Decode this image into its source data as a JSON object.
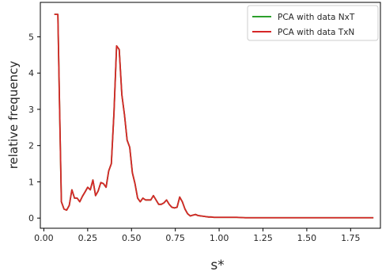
{
  "chart_data": {
    "type": "line",
    "title": "",
    "xlabel": "s*",
    "ylabel": "relative frequency",
    "xlim": [
      -0.02,
      1.92
    ],
    "ylim": [
      -0.28,
      5.95
    ],
    "xticks": [
      "0.00",
      "0.25",
      "0.50",
      "0.75",
      "1.00",
      "1.25",
      "1.50",
      "1.75"
    ],
    "yticks": [
      "0",
      "1",
      "2",
      "3",
      "4",
      "5"
    ],
    "grid": false,
    "legend_position": "top-right",
    "series": [
      {
        "name": "PCA with data NxT",
        "color": "#2ca02c",
        "x": [
          0.06,
          0.08,
          0.09,
          0.1,
          0.115,
          0.13,
          0.145,
          0.16,
          0.175,
          0.19,
          0.205,
          0.22,
          0.235,
          0.25,
          0.265,
          0.28,
          0.295,
          0.31,
          0.325,
          0.34,
          0.355,
          0.37,
          0.385,
          0.4,
          0.415,
          0.43,
          0.445,
          0.46,
          0.475,
          0.49,
          0.505,
          0.52,
          0.535,
          0.55,
          0.565,
          0.58,
          0.595,
          0.61,
          0.625,
          0.64,
          0.655,
          0.67,
          0.685,
          0.7,
          0.715,
          0.73,
          0.745,
          0.76,
          0.775,
          0.79,
          0.805,
          0.82,
          0.835,
          0.85,
          0.865,
          0.88,
          0.895,
          0.91,
          0.925,
          0.94,
          0.955,
          0.97,
          0.985,
          1.0,
          1.05,
          1.1,
          1.15,
          1.2,
          1.25,
          1.3,
          1.4,
          1.5,
          1.6,
          1.7,
          1.8,
          1.88
        ],
        "values": [
          5.62,
          5.62,
          3.0,
          0.45,
          0.25,
          0.22,
          0.35,
          0.78,
          0.55,
          0.55,
          0.45,
          0.6,
          0.72,
          0.85,
          0.78,
          1.05,
          0.62,
          0.75,
          0.98,
          0.95,
          0.85,
          1.3,
          1.5,
          2.9,
          4.75,
          4.65,
          3.4,
          2.85,
          2.15,
          1.95,
          1.25,
          0.95,
          0.55,
          0.45,
          0.55,
          0.5,
          0.5,
          0.5,
          0.62,
          0.5,
          0.38,
          0.38,
          0.42,
          0.5,
          0.38,
          0.3,
          0.28,
          0.3,
          0.58,
          0.45,
          0.25,
          0.12,
          0.06,
          0.08,
          0.1,
          0.07,
          0.06,
          0.05,
          0.04,
          0.03,
          0.03,
          0.02,
          0.02,
          0.02,
          0.02,
          0.02,
          0.01,
          0.01,
          0.01,
          0.01,
          0.01,
          0.01,
          0.01,
          0.01,
          0.01,
          0.01
        ]
      },
      {
        "name": "PCA with data TxN",
        "color": "#d62728",
        "x": [
          0.06,
          0.08,
          0.09,
          0.1,
          0.115,
          0.13,
          0.145,
          0.16,
          0.175,
          0.19,
          0.205,
          0.22,
          0.235,
          0.25,
          0.265,
          0.28,
          0.295,
          0.31,
          0.325,
          0.34,
          0.355,
          0.37,
          0.385,
          0.4,
          0.415,
          0.43,
          0.445,
          0.46,
          0.475,
          0.49,
          0.505,
          0.52,
          0.535,
          0.55,
          0.565,
          0.58,
          0.595,
          0.61,
          0.625,
          0.64,
          0.655,
          0.67,
          0.685,
          0.7,
          0.715,
          0.73,
          0.745,
          0.76,
          0.775,
          0.79,
          0.805,
          0.82,
          0.835,
          0.85,
          0.865,
          0.88,
          0.895,
          0.91,
          0.925,
          0.94,
          0.955,
          0.97,
          0.985,
          1.0,
          1.05,
          1.1,
          1.15,
          1.2,
          1.25,
          1.3,
          1.4,
          1.5,
          1.6,
          1.7,
          1.8,
          1.88
        ],
        "values": [
          5.62,
          5.62,
          3.0,
          0.45,
          0.25,
          0.22,
          0.35,
          0.78,
          0.55,
          0.55,
          0.45,
          0.6,
          0.72,
          0.85,
          0.78,
          1.05,
          0.62,
          0.75,
          0.98,
          0.95,
          0.85,
          1.3,
          1.5,
          2.9,
          4.75,
          4.65,
          3.4,
          2.85,
          2.15,
          1.95,
          1.25,
          0.95,
          0.55,
          0.45,
          0.55,
          0.5,
          0.5,
          0.5,
          0.62,
          0.5,
          0.38,
          0.38,
          0.42,
          0.5,
          0.38,
          0.3,
          0.28,
          0.3,
          0.58,
          0.45,
          0.25,
          0.12,
          0.06,
          0.08,
          0.1,
          0.07,
          0.06,
          0.05,
          0.04,
          0.03,
          0.03,
          0.02,
          0.02,
          0.02,
          0.02,
          0.02,
          0.01,
          0.01,
          0.01,
          0.01,
          0.01,
          0.01,
          0.01,
          0.01,
          0.01,
          0.01
        ]
      }
    ]
  }
}
